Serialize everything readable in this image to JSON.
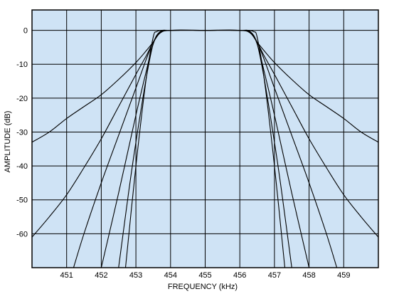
{
  "chart_data": {
    "type": "line",
    "title": "",
    "xlabel": "FREQUENCY (kHz)",
    "ylabel": "AMPLITUDE (dB)",
    "xlim": [
      450.0,
      460.0
    ],
    "ylim": [
      -70,
      6
    ],
    "x_ticks": [
      451,
      452,
      453,
      454,
      455,
      456,
      457,
      458,
      459
    ],
    "y_ticks": [
      0,
      -10,
      -20,
      -30,
      -40,
      -50,
      -60
    ],
    "grid": true,
    "legend": "none",
    "plot_background": "#cfe3f5",
    "line_color": "#000000",
    "series": [
      {
        "x": [
          450.0,
          450.5,
          451.0,
          451.5,
          452.0,
          452.5,
          453.0,
          453.3,
          453.5,
          453.7,
          454.0,
          455.0,
          456.0,
          456.3,
          456.5,
          456.7,
          457.0,
          457.5,
          458.0,
          458.5,
          459.0,
          459.5,
          460.0
        ],
        "y": [
          -33,
          -30,
          -26,
          -22.5,
          -19,
          -14.5,
          -9.5,
          -6,
          -3.5,
          -0.8,
          0,
          0,
          0,
          -0.8,
          -3.5,
          -6,
          -9.5,
          -14.5,
          -19,
          -22.5,
          -26,
          -30,
          -33
        ]
      },
      {
        "x": [
          450.0,
          450.5,
          451.0,
          451.5,
          452.0,
          452.5,
          453.0,
          453.3,
          453.5,
          453.7,
          454.0,
          455.0,
          456.0,
          456.3,
          456.5,
          456.7,
          457.0,
          457.5,
          458.0,
          458.5,
          459.0,
          459.5,
          460.0
        ],
        "y": [
          -61,
          -55,
          -48.5,
          -40.5,
          -32,
          -22.5,
          -13,
          -7.5,
          -3.5,
          -0.6,
          0,
          0,
          0,
          -0.6,
          -3.5,
          -7.5,
          -13,
          -22.5,
          -32,
          -40.5,
          -48.5,
          -55,
          -61
        ]
      },
      {
        "x": [
          451.2,
          451.5,
          452.0,
          452.5,
          453.0,
          453.3,
          453.5,
          453.7,
          454.0,
          455.0,
          456.0,
          456.3,
          456.5,
          456.7,
          457.0,
          457.5,
          458.0,
          458.5,
          458.8
        ],
        "y": [
          -70,
          -60,
          -45,
          -31,
          -17,
          -8.5,
          -3.5,
          -0.5,
          0,
          0,
          0,
          -0.5,
          -3.5,
          -8.5,
          -17,
          -31,
          -45,
          -60,
          -70
        ]
      },
      {
        "x": [
          452.0,
          452.5,
          453.0,
          453.3,
          453.5,
          453.7,
          454.0,
          455.0,
          456.0,
          456.3,
          456.5,
          456.7,
          457.0,
          457.5,
          458.0
        ],
        "y": [
          -70,
          -48,
          -25,
          -12,
          -4,
          -0.5,
          0,
          0,
          0,
          -0.5,
          -4,
          -12,
          -25,
          -48,
          -70
        ]
      },
      {
        "x": [
          452.5,
          452.8,
          453.0,
          453.3,
          453.5,
          453.7,
          454.0,
          455.0,
          456.0,
          456.3,
          456.5,
          456.7,
          457.0,
          457.2,
          457.5
        ],
        "y": [
          -70,
          -47,
          -33,
          -14,
          -4,
          -0.4,
          0,
          0,
          0,
          -0.4,
          -4,
          -14,
          -33,
          -47,
          -70
        ]
      },
      {
        "x": [
          452.7,
          453.0,
          453.3,
          453.5,
          453.6,
          453.75,
          454.0,
          455.0,
          456.0,
          456.25,
          456.4,
          456.5,
          456.7,
          457.0,
          457.3
        ],
        "y": [
          -70,
          -40,
          -14,
          -2,
          -0.4,
          0,
          0,
          0,
          0,
          0,
          -0.4,
          -2,
          -14,
          -40,
          -70
        ]
      }
    ]
  }
}
